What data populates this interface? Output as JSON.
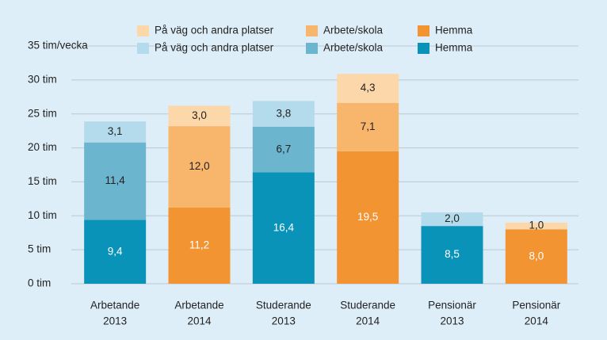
{
  "chart_data": {
    "type": "bar",
    "stacked": true,
    "categories": [
      [
        "Arbetande",
        "2013"
      ],
      [
        "Arbetande",
        "2014"
      ],
      [
        "Studerande",
        "2013"
      ],
      [
        "Studerande",
        "2014"
      ],
      [
        "Pensionär",
        "2013"
      ],
      [
        "Pensionär",
        "2014"
      ]
    ],
    "series": [
      {
        "name": "Hemma",
        "color": "#0993b8",
        "label_color": "#ffffff",
        "values": [
          9.4,
          null,
          16.4,
          null,
          8.5,
          null
        ],
        "value_labels": [
          "9,4",
          null,
          "16,4",
          null,
          "8,5",
          null
        ]
      },
      {
        "name": "Arbete/skola",
        "color": "#6cb5cf",
        "label_color": "#222222",
        "values": [
          11.4,
          null,
          6.7,
          null,
          null,
          null
        ],
        "value_labels": [
          "11,4",
          null,
          "6,7",
          null,
          null,
          null
        ]
      },
      {
        "name": "På väg och andra platser",
        "color": "#b4dbeb",
        "label_color": "#222222",
        "values": [
          3.1,
          null,
          3.8,
          null,
          2.0,
          null
        ],
        "value_labels": [
          "3,1",
          null,
          "3,8",
          null,
          "2,0",
          null
        ]
      },
      {
        "name": "Hemma",
        "color": "#f39433",
        "label_color": "#ffffff",
        "values": [
          null,
          11.2,
          null,
          19.5,
          null,
          8.0
        ],
        "value_labels": [
          null,
          "11,2",
          null,
          "19,5",
          null,
          "8,0"
        ]
      },
      {
        "name": "Arbete/skola",
        "color": "#f8b56c",
        "label_color": "#222222",
        "values": [
          null,
          12.0,
          null,
          7.1,
          null,
          null
        ],
        "value_labels": [
          null,
          "12,0",
          null,
          "7,1",
          null,
          null
        ]
      },
      {
        "name": "På väg och andra platser",
        "color": "#fcd7aa",
        "label_color": "#222222",
        "values": [
          null,
          3.0,
          null,
          4.3,
          null,
          1.0
        ],
        "value_labels": [
          null,
          "3,0",
          null,
          "4,3",
          null,
          "1,0"
        ]
      }
    ],
    "ylim": [
      0,
      35
    ],
    "yticks": [
      {
        "value": 0,
        "label": "0 tim"
      },
      {
        "value": 5,
        "label": "5 tim"
      },
      {
        "value": 10,
        "label": "10 tim"
      },
      {
        "value": 15,
        "label": "15 tim"
      },
      {
        "value": 20,
        "label": "20 tim"
      },
      {
        "value": 25,
        "label": "25 tim"
      },
      {
        "value": 30,
        "label": "30 tim"
      },
      {
        "value": 35,
        "label": "35 tim/vecka"
      }
    ],
    "grid": true
  }
}
